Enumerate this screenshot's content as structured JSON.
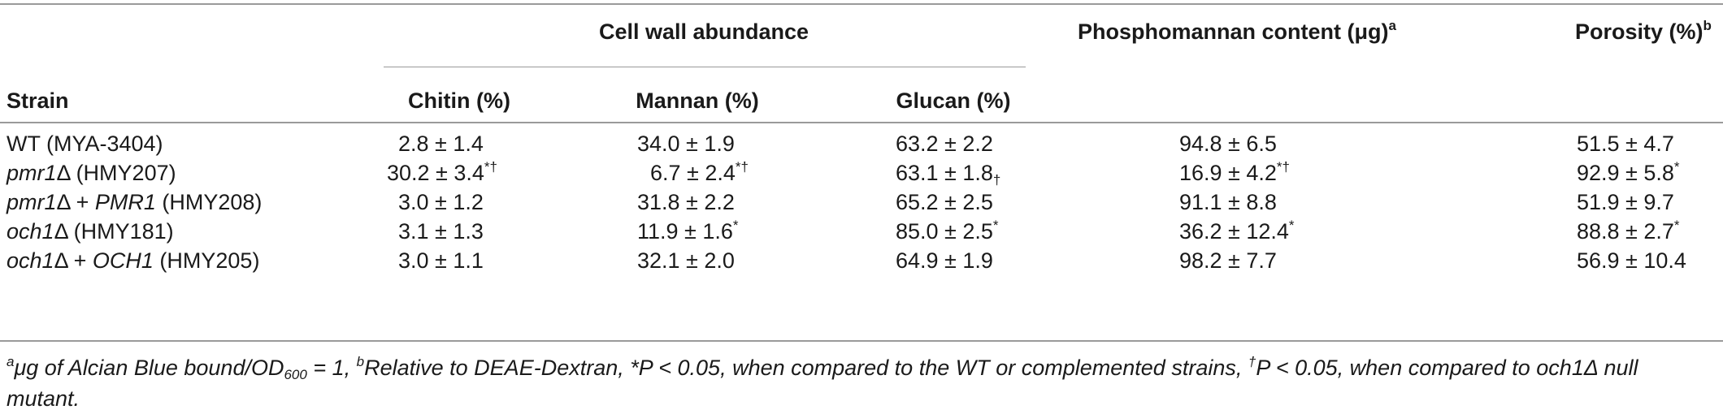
{
  "table": {
    "group_headers": {
      "cell_wall": "Cell wall abundance",
      "phosphomannan_main": "Phosphomannan content (μg)",
      "phosphomannan_sup": "a",
      "porosity_main": "Porosity (%)",
      "porosity_sup": "b"
    },
    "columns": {
      "strain": "Strain",
      "chitin": "Chitin (%)",
      "mannan": "Mannan (%)",
      "glucan": "Glucan (%)"
    },
    "rows": [
      {
        "strain_italic": "",
        "strain_rest": "WT (MYA-3404)",
        "chitin": "2.8 ± 1.4",
        "chitin_sup": "",
        "mannan": "34.0 ± 1.9",
        "mannan_sup": "",
        "glucan": "63.2 ± 2.2",
        "glucan_sup": "",
        "phosphomannan": "94.8 ± 6.5",
        "phosphomannan_sup": "",
        "porosity": "51.5 ± 4.7",
        "porosity_sup": ""
      },
      {
        "strain_italic": "pmr1",
        "strain_rest": "Δ (HMY207)",
        "chitin": "30.2 ± 3.4",
        "chitin_sup": "*†",
        "mannan": "6.7 ± 2.4",
        "mannan_sup": "*†",
        "glucan": "63.1 ± 1.8",
        "glucan_sup": "†",
        "phosphomannan": "16.9 ± 4.2",
        "phosphomannan_sup": "*†",
        "porosity": "92.9 ± 5.8",
        "porosity_sup": "*"
      },
      {
        "strain_italic": "pmr1",
        "strain_rest": "Δ + ",
        "strain_italic2": "PMR1",
        "strain_rest2": " (HMY208)",
        "chitin": "3.0 ± 1.2",
        "chitin_sup": "",
        "mannan": "31.8 ± 2.2",
        "mannan_sup": "",
        "glucan": "65.2 ± 2.5",
        "glucan_sup": "",
        "phosphomannan": "91.1 ± 8.8",
        "phosphomannan_sup": "",
        "porosity": "51.9 ± 9.7",
        "porosity_sup": ""
      },
      {
        "strain_italic": "och1",
        "strain_rest": "Δ (HMY181)",
        "chitin": "3.1 ± 1.3",
        "chitin_sup": "",
        "mannan": "11.9 ± 1.6",
        "mannan_sup": "*",
        "glucan": "85.0 ± 2.5",
        "glucan_sup": "*",
        "phosphomannan": "36.2 ± 12.4",
        "phosphomannan_sup": "*",
        "porosity": "88.8 ± 2.7",
        "porosity_sup": "*"
      },
      {
        "strain_italic": "och1",
        "strain_rest": "Δ + ",
        "strain_italic2": "OCH1",
        "strain_rest2": " (HMY205)",
        "chitin": "3.0 ± 1.1",
        "chitin_sup": "",
        "mannan": "32.1 ± 2.0",
        "mannan_sup": "",
        "glucan": "64.9 ± 1.9",
        "glucan_sup": "",
        "phosphomannan": "98.2 ± 7.7",
        "phosphomannan_sup": "",
        "porosity": "56.9 ± 10.4",
        "porosity_sup": ""
      }
    ]
  },
  "footnote": {
    "a_sup": "a",
    "a_text_1": "μg of Alcian Blue bound/OD",
    "a_sub": "600",
    "a_text_2": " = 1, ",
    "b_sup": "b",
    "b_text": "Relative to DEAE-Dextran, ",
    "star_text": "*P < 0.05, when compared to the WT or complemented strains, ",
    "dagger_sup": "†",
    "dagger_text": "P < 0.05, when compared to och1Δ null mutant."
  }
}
